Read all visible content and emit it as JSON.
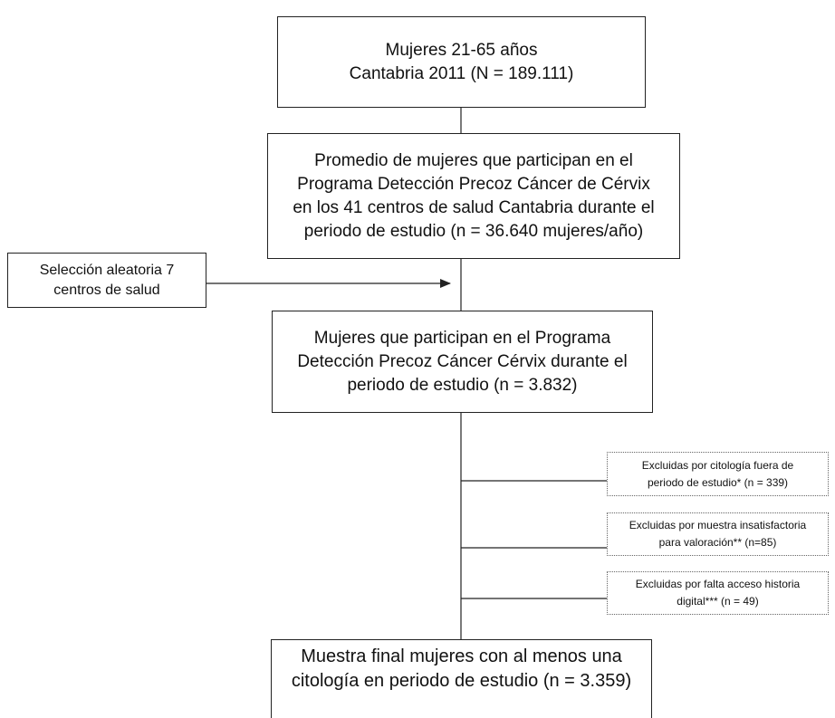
{
  "boxes": {
    "population": {
      "lines": [
        "Mujeres 21-65 años",
        "Cantabria 2011 (N = 189.111)"
      ]
    },
    "participants_average": {
      "lines": [
        "Promedio de mujeres que participan en el",
        "Programa Detección Precoz Cáncer de Cérvix",
        "en los 41 centros de salud Cantabria durante el",
        "periodo de estudio (n = 36.640 mujeres/año)"
      ]
    },
    "random_selection": {
      "lines": [
        "Selección aleatoria 7",
        "centros de salud"
      ]
    },
    "participants_selected": {
      "lines": [
        "Mujeres que participan en el Programa",
        "Detección Precoz Cáncer Cérvix durante el",
        "periodo de estudio (n = 3.832)"
      ]
    },
    "exclusions": [
      {
        "lines": [
          "Excluidas por citología fuera de",
          "periodo de estudio*  (n = 339)"
        ]
      },
      {
        "lines": [
          "Excluidas por muestra insatisfactoria",
          "para valoración** (n=85)"
        ]
      },
      {
        "lines": [
          "Excluidas por falta acceso historia",
          "digital*** (n = 49)"
        ]
      }
    ],
    "final_sample": {
      "lines": [
        "Muestra final mujeres con al menos una",
        "citología en periodo de estudio (n = 3.359)"
      ]
    }
  },
  "colors": {
    "border": "#222222",
    "dotted_border": "#666666",
    "text": "#111111"
  }
}
